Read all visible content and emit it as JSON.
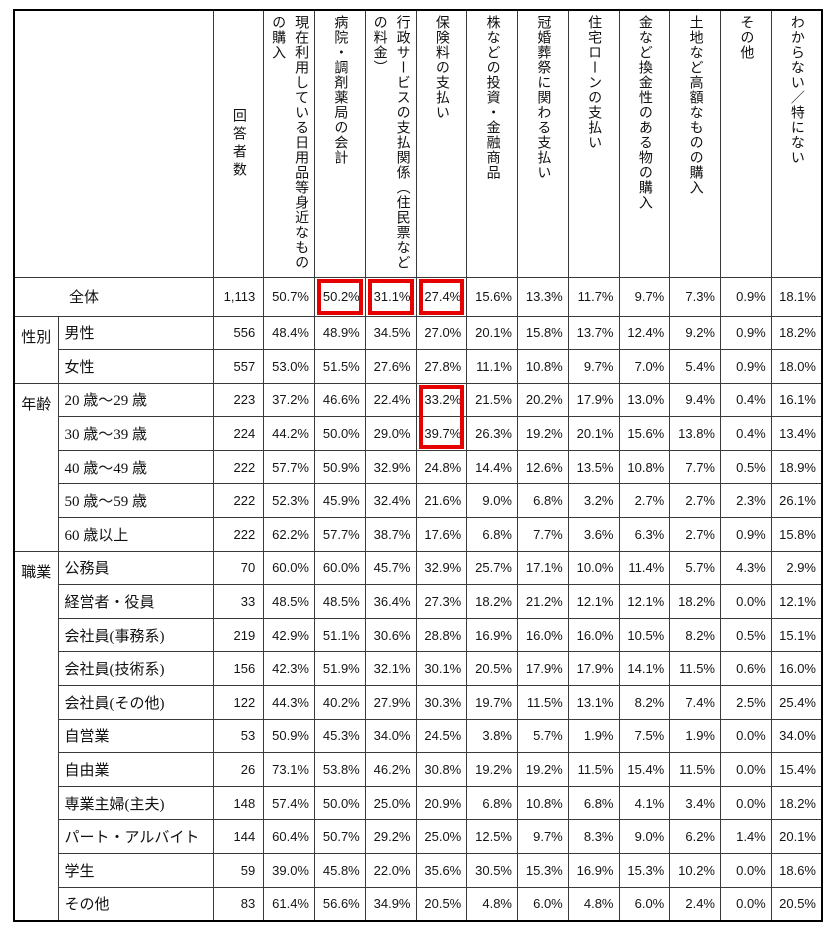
{
  "table": {
    "col_headers": [
      "回答者数",
      "現在利用している日用品等身近なものの購入",
      "病院・調剤薬局の会計",
      "行政サービスの支払関係（住民票などの料金）",
      "保険料の支払い",
      "株などの投資・金融商品",
      "冠婚葬祭に関わる支払い",
      "住宅ローンの支払い",
      "金など換金性のある物の購入",
      "土地など高額なものの購入",
      "その他",
      "わからない／特にない"
    ],
    "row_groups": [
      {
        "group": "",
        "rows": [
          {
            "label": "全体",
            "values": [
              "1,113",
              "50.7%",
              "50.2%",
              "31.1%",
              "27.4%",
              "15.6%",
              "13.3%",
              "11.7%",
              "9.7%",
              "7.3%",
              "0.9%",
              "18.1%"
            ]
          }
        ]
      },
      {
        "group": "性別",
        "rows": [
          {
            "label": "男性",
            "values": [
              "556",
              "48.4%",
              "48.9%",
              "34.5%",
              "27.0%",
              "20.1%",
              "15.8%",
              "13.7%",
              "12.4%",
              "9.2%",
              "0.9%",
              "18.2%"
            ]
          },
          {
            "label": "女性",
            "values": [
              "557",
              "53.0%",
              "51.5%",
              "27.6%",
              "27.8%",
              "11.1%",
              "10.8%",
              "9.7%",
              "7.0%",
              "5.4%",
              "0.9%",
              "18.0%"
            ]
          }
        ]
      },
      {
        "group": "年齢",
        "rows": [
          {
            "label": "20 歳〜29 歳",
            "values": [
              "223",
              "37.2%",
              "46.6%",
              "22.4%",
              "33.2%",
              "21.5%",
              "20.2%",
              "17.9%",
              "13.0%",
              "9.4%",
              "0.4%",
              "16.1%"
            ]
          },
          {
            "label": "30 歳〜39 歳",
            "values": [
              "224",
              "44.2%",
              "50.0%",
              "29.0%",
              "39.7%",
              "26.3%",
              "19.2%",
              "20.1%",
              "15.6%",
              "13.8%",
              "0.4%",
              "13.4%"
            ]
          },
          {
            "label": "40 歳〜49 歳",
            "values": [
              "222",
              "57.7%",
              "50.9%",
              "32.9%",
              "24.8%",
              "14.4%",
              "12.6%",
              "13.5%",
              "10.8%",
              "7.7%",
              "0.5%",
              "18.9%"
            ]
          },
          {
            "label": "50 歳〜59 歳",
            "values": [
              "222",
              "52.3%",
              "45.9%",
              "32.4%",
              "21.6%",
              "9.0%",
              "6.8%",
              "3.2%",
              "2.7%",
              "2.7%",
              "2.3%",
              "26.1%"
            ]
          },
          {
            "label": "60 歳以上",
            "values": [
              "222",
              "62.2%",
              "57.7%",
              "38.7%",
              "17.6%",
              "6.8%",
              "7.7%",
              "3.6%",
              "6.3%",
              "2.7%",
              "0.9%",
              "15.8%"
            ]
          }
        ]
      },
      {
        "group": "職業",
        "rows": [
          {
            "label": "公務員",
            "values": [
              "70",
              "60.0%",
              "60.0%",
              "45.7%",
              "32.9%",
              "25.7%",
              "17.1%",
              "10.0%",
              "11.4%",
              "5.7%",
              "4.3%",
              "2.9%"
            ]
          },
          {
            "label": "経営者・役員",
            "values": [
              "33",
              "48.5%",
              "48.5%",
              "36.4%",
              "27.3%",
              "18.2%",
              "21.2%",
              "12.1%",
              "12.1%",
              "18.2%",
              "0.0%",
              "12.1%"
            ]
          },
          {
            "label": "会社員(事務系)",
            "values": [
              "219",
              "42.9%",
              "51.1%",
              "30.6%",
              "28.8%",
              "16.9%",
              "16.0%",
              "16.0%",
              "10.5%",
              "8.2%",
              "0.5%",
              "15.1%"
            ]
          },
          {
            "label": "会社員(技術系)",
            "values": [
              "156",
              "42.3%",
              "51.9%",
              "32.1%",
              "30.1%",
              "20.5%",
              "17.9%",
              "17.9%",
              "14.1%",
              "11.5%",
              "0.6%",
              "16.0%"
            ]
          },
          {
            "label": "会社員(その他)",
            "values": [
              "122",
              "44.3%",
              "40.2%",
              "27.9%",
              "30.3%",
              "19.7%",
              "11.5%",
              "13.1%",
              "8.2%",
              "7.4%",
              "2.5%",
              "25.4%"
            ]
          },
          {
            "label": "自営業",
            "values": [
              "53",
              "50.9%",
              "45.3%",
              "34.0%",
              "24.5%",
              "3.8%",
              "5.7%",
              "1.9%",
              "7.5%",
              "1.9%",
              "0.0%",
              "34.0%"
            ]
          },
          {
            "label": "自由業",
            "values": [
              "26",
              "73.1%",
              "53.8%",
              "46.2%",
              "30.8%",
              "19.2%",
              "19.2%",
              "11.5%",
              "15.4%",
              "11.5%",
              "0.0%",
              "15.4%"
            ]
          },
          {
            "label": "専業主婦(主夫)",
            "values": [
              "148",
              "57.4%",
              "50.0%",
              "25.0%",
              "20.9%",
              "6.8%",
              "10.8%",
              "6.8%",
              "4.1%",
              "3.4%",
              "0.0%",
              "18.2%"
            ]
          },
          {
            "label": "パート・アルバイト",
            "values": [
              "144",
              "60.4%",
              "50.7%",
              "29.2%",
              "25.0%",
              "12.5%",
              "9.7%",
              "8.3%",
              "9.0%",
              "6.2%",
              "1.4%",
              "20.1%"
            ]
          },
          {
            "label": "学生",
            "values": [
              "59",
              "39.0%",
              "45.8%",
              "22.0%",
              "35.6%",
              "30.5%",
              "15.3%",
              "16.9%",
              "15.3%",
              "10.2%",
              "0.0%",
              "18.6%"
            ]
          },
          {
            "label": "その他",
            "values": [
              "83",
              "61.4%",
              "56.6%",
              "34.9%",
              "20.5%",
              "4.8%",
              "6.0%",
              "4.8%",
              "6.0%",
              "2.4%",
              "0.0%",
              "20.5%"
            ]
          }
        ]
      }
    ],
    "highlights": [
      {
        "row": 0,
        "col": 2,
        "part": "full"
      },
      {
        "row": 0,
        "col": 3,
        "part": "full"
      },
      {
        "row": 0,
        "col": 4,
        "part": "full"
      },
      {
        "row": 3,
        "col": 4,
        "part": "top"
      },
      {
        "row": 4,
        "col": 4,
        "part": "bottom"
      }
    ],
    "highlight_color": "#e60000"
  }
}
